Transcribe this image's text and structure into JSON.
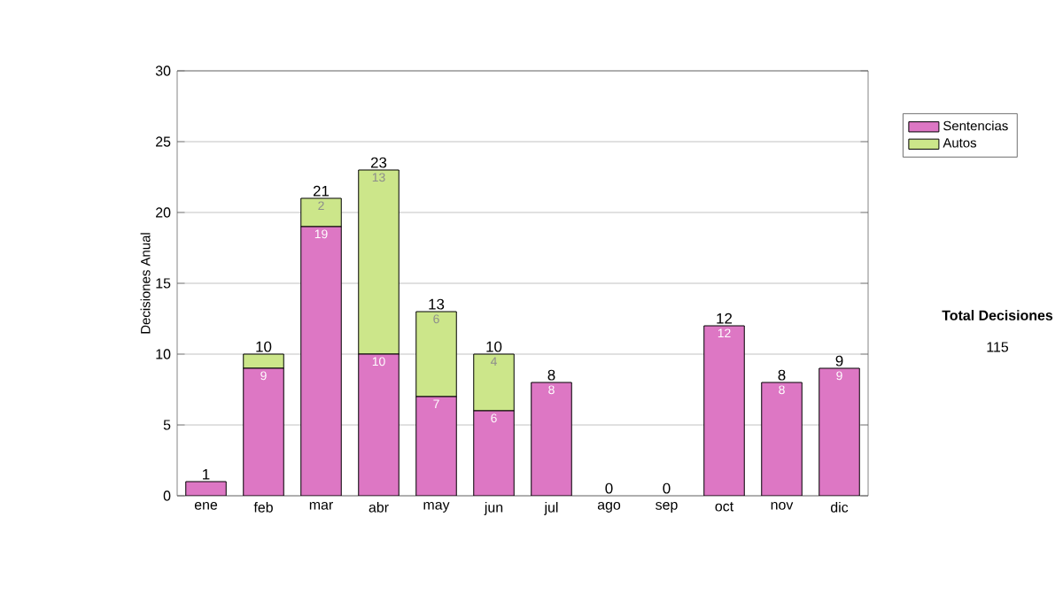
{
  "chart_data": {
    "type": "bar",
    "stacked": true,
    "ylabel": "Decisiones Anual",
    "categories": [
      "ene",
      "feb",
      "mar",
      "abr",
      "may",
      "jun",
      "jul",
      "ago",
      "sep",
      "oct",
      "nov",
      "dic"
    ],
    "series": [
      {
        "name": "Sentencias",
        "color": "#dd77c4",
        "values": [
          1,
          9,
          19,
          10,
          7,
          6,
          8,
          0,
          0,
          12,
          8,
          9
        ],
        "value_labels": [
          null,
          "9",
          "19",
          "10",
          "7",
          "6",
          "8",
          null,
          null,
          "12",
          "8",
          "9"
        ]
      },
      {
        "name": "Autos",
        "color": "#cce68a",
        "values": [
          0,
          1,
          2,
          13,
          6,
          4,
          0,
          0,
          0,
          0,
          0,
          0
        ],
        "value_labels": [
          null,
          null,
          "2",
          "13",
          "6",
          "4",
          null,
          null,
          null,
          null,
          null,
          null
        ]
      }
    ],
    "totals": [
      "1",
      "10",
      "21",
      "23",
      "13",
      "10",
      "8",
      "0",
      "0",
      "12",
      "8",
      "9"
    ],
    "ylim": [
      0,
      30
    ],
    "yticks": [
      0,
      5,
      10,
      15,
      20,
      25,
      30
    ],
    "grid": "y",
    "legend": "right",
    "annotations": [
      "**Total Decisiones**",
      "115"
    ]
  }
}
